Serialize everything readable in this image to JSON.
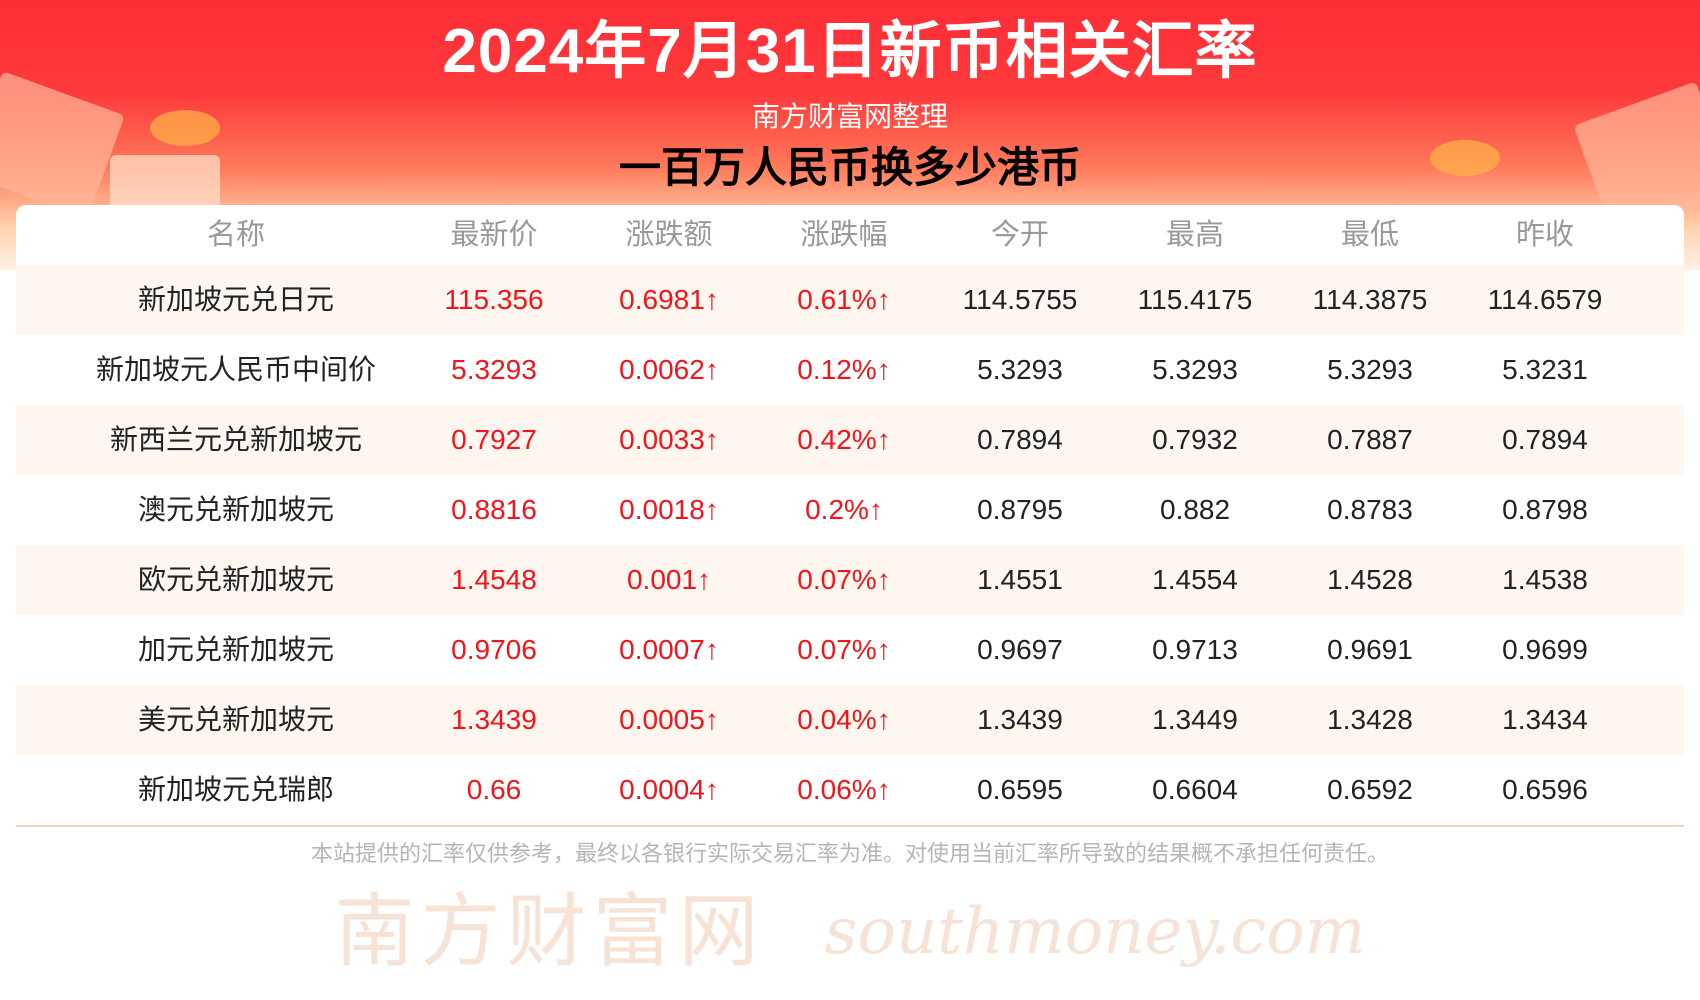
{
  "header": {
    "title": "2024年7月31日新币相关汇率",
    "subtitle": "南方财富网整理"
  },
  "colors": {
    "accent": "#fd2d36",
    "up": "#f0151b"
  },
  "table": {
    "columns": [
      "名称",
      "最新价",
      "涨跌额",
      "涨跌幅",
      "今开",
      "最高",
      "最低",
      "昨收"
    ],
    "rows": [
      [
        "新加坡元兑日元",
        "115.356",
        "0.6981↑",
        "0.61%↑",
        "114.5755",
        "115.4175",
        "114.3875",
        "114.6579"
      ],
      [
        "新加坡元人民币中间价",
        "5.3293",
        "0.0062↑",
        "0.12%↑",
        "5.3293",
        "5.3293",
        "5.3293",
        "5.3231"
      ],
      [
        "新西兰元兑新加坡元",
        "0.7927",
        "0.0033↑",
        "0.42%↑",
        "0.7894",
        "0.7932",
        "0.7887",
        "0.7894"
      ],
      [
        "澳元兑新加坡元",
        "0.8816",
        "0.0018↑",
        "0.2%↑",
        "0.8795",
        "0.882",
        "0.8783",
        "0.8798"
      ],
      [
        "欧元兑新加坡元",
        "1.4548",
        "0.001↑",
        "0.07%↑",
        "1.4551",
        "1.4554",
        "1.4528",
        "1.4538"
      ],
      [
        "加元兑新加坡元",
        "0.9706",
        "0.0007↑",
        "0.07%↑",
        "0.9697",
        "0.9713",
        "0.9691",
        "0.9699"
      ],
      [
        "美元兑新加坡元",
        "1.3439",
        "0.0005↑",
        "0.04%↑",
        "1.3439",
        "1.3449",
        "1.3428",
        "1.3434"
      ],
      [
        "新加坡元兑瑞郎",
        "0.66",
        "0.0004↑",
        "0.06%↑",
        "0.6595",
        "0.6604",
        "0.6592",
        "0.6596"
      ]
    ]
  },
  "watermark": {
    "cn": "南方财富网",
    "en": "southmoney.com"
  },
  "overlay_text": "一百万人民币换多少港币",
  "footer": "本站提供的汇率仅供参考，最终以各银行实际交易汇率为准。对使用当前汇率所导致的结果概不承担任何责任。"
}
